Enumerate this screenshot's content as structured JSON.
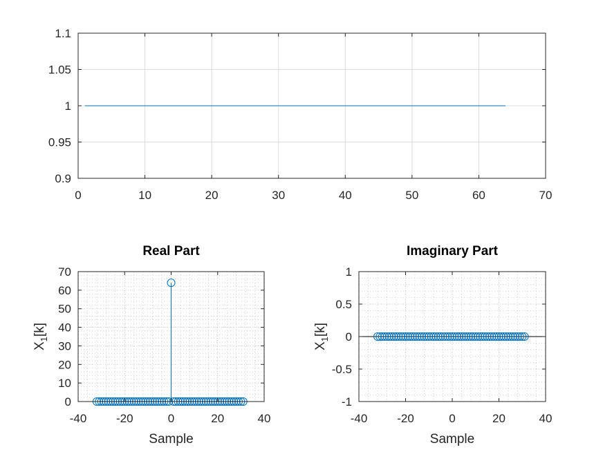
{
  "chart_data": [
    {
      "type": "line",
      "title": "",
      "xlabel": "",
      "ylabel": "",
      "xlim": [
        0,
        70
      ],
      "ylim": [
        0.9,
        1.1
      ],
      "xticks": [
        0,
        10,
        20,
        30,
        40,
        50,
        60,
        70
      ],
      "xtick_labels": [
        "0",
        "10",
        "20",
        "30",
        "40",
        "50",
        "60",
        "70"
      ],
      "yticks": [
        0.9,
        0.95,
        1,
        1.05,
        1.1
      ],
      "ytick_labels": [
        "0.9",
        "0.95",
        "1",
        "1.05",
        "1.1"
      ],
      "grid": "major",
      "series": [
        {
          "x_start": 1,
          "x_end": 64,
          "y": 1,
          "color": "#0072bd"
        }
      ]
    },
    {
      "type": "stem",
      "title": "Real Part",
      "xlabel": "Sample",
      "ylabel": "X",
      "ylabel_subscript": "1",
      "ylabel_suffix": "[k]",
      "xlim": [
        -40,
        40
      ],
      "ylim": [
        0,
        70
      ],
      "xticks": [
        -40,
        -20,
        0,
        20,
        40
      ],
      "xtick_labels": [
        "-40",
        "-20",
        "0",
        "20",
        "40"
      ],
      "yticks": [
        0,
        10,
        20,
        30,
        40,
        50,
        60,
        70
      ],
      "ytick_labels": [
        "0",
        "10",
        "20",
        "30",
        "40",
        "50",
        "60",
        "70"
      ],
      "grid": "minor",
      "baseline": 0,
      "series": [
        {
          "x_start": -32,
          "x_end": 31,
          "default_value": 0,
          "spikes": [
            {
              "x": 0,
              "y": 64
            }
          ],
          "color": "#0072bd"
        }
      ]
    },
    {
      "type": "stem",
      "title": "Imaginary Part",
      "xlabel": "Sample",
      "ylabel": "X",
      "ylabel_subscript": "1",
      "ylabel_suffix": "[k]",
      "xlim": [
        -40,
        40
      ],
      "ylim": [
        -1,
        1
      ],
      "xticks": [
        -40,
        -20,
        0,
        20,
        40
      ],
      "xtick_labels": [
        "-40",
        "-20",
        "0",
        "20",
        "40"
      ],
      "yticks": [
        -1,
        -0.5,
        0,
        0.5,
        1
      ],
      "ytick_labels": [
        "-1",
        "-0.5",
        "0",
        "0.5",
        "1"
      ],
      "grid": "minor",
      "baseline": 0,
      "series": [
        {
          "x_start": -32,
          "x_end": 31,
          "default_value": 0,
          "spikes": [],
          "color": "#0072bd"
        }
      ]
    }
  ]
}
